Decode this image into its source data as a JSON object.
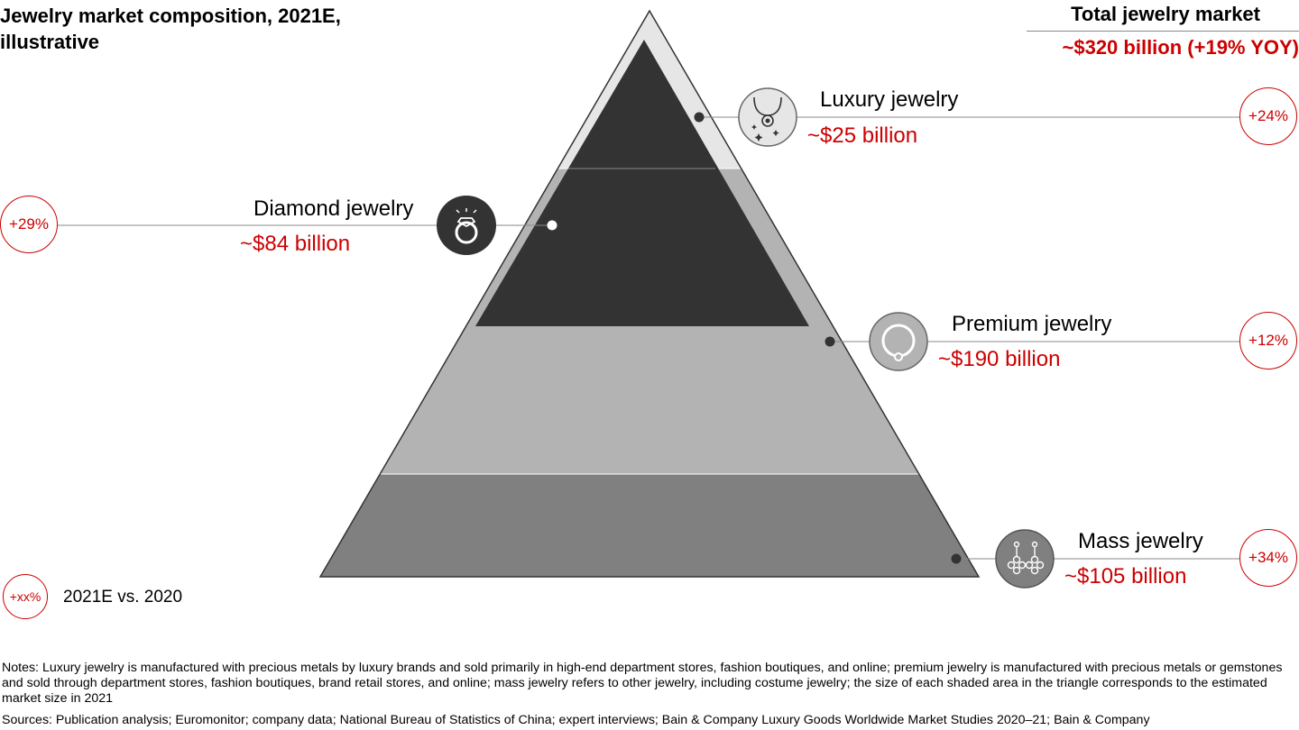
{
  "title": "Jewelry market composition, 2021E, illustrative",
  "total": {
    "label": "Total jewelry market",
    "value": "~$320 billion (+19% YOY)"
  },
  "segments": [
    {
      "name": "Luxury jewelry",
      "value": "~$25 billion",
      "growth": "+24%",
      "icon": "necklace-icon"
    },
    {
      "name": "Diamond jewelry",
      "value": "~$84 billion",
      "growth": "+29%",
      "icon": "diamond-ring-icon"
    },
    {
      "name": "Premium jewelry",
      "value": "~$190 billion",
      "growth": "+12%",
      "icon": "bangle-icon"
    },
    {
      "name": "Mass jewelry",
      "value": "~$105 billion",
      "growth": "+34%",
      "icon": "earrings-icon"
    }
  ],
  "legend": {
    "symbol": "+xx%",
    "label": "2021E vs. 2020"
  },
  "notes": "Notes: Luxury jewelry is manufactured with precious metals by luxury brands and sold primarily in high-end department stores, fashion boutiques, and online; premium jewelry is manufactured with precious metals or gemstones and sold through department stores, fashion boutiques, brand retail stores, and online; mass jewelry refers to other jewelry, including costume jewelry; the size of each shaded area in the triangle corresponds to the estimated market size in 2021",
  "sources": "Sources: Publication analysis; Euromonitor; company data; National Bureau of Statistics of China; expert interviews; Bain & Company Luxury Goods Worldwide Market Studies 2020–21; Bain & Company",
  "colors": {
    "accent": "#cc0000",
    "luxury_band": "#e6e6e6",
    "premium_band": "#b3b3b3",
    "mass_band": "#808080",
    "diamond": "#333333"
  }
}
